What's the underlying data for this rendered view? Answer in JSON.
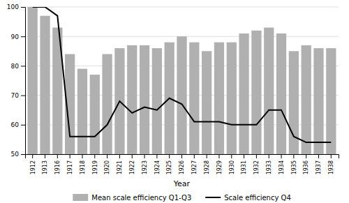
{
  "chart_data": {
    "type": "bar",
    "xlabel": "Year",
    "categories": [
      "1912",
      "1913",
      "1916",
      "1917",
      "1918",
      "1919",
      "1920",
      "1921",
      "1922",
      "1923",
      "1924",
      "1925",
      "1926",
      "1927",
      "1928",
      "1929",
      "1930",
      "1931",
      "1932",
      "1933",
      "1934",
      "1935",
      "1936",
      "1937",
      "1938"
    ],
    "series": [
      {
        "name": "Mean scale efficiency Q1-Q3",
        "type": "bar",
        "color": "#b0b0b0",
        "values": [
          100,
          97,
          93,
          84,
          79,
          77,
          84,
          86,
          87,
          87,
          86,
          88,
          90,
          88,
          85,
          88,
          88,
          91,
          92,
          93,
          91,
          85,
          87,
          86,
          86
        ]
      },
      {
        "name": "Scale efficiency Q4",
        "type": "line",
        "color": "#000000",
        "values": [
          100,
          100,
          97,
          56,
          56,
          56,
          60,
          68,
          64,
          66,
          65,
          69,
          67,
          61,
          61,
          61,
          60,
          60,
          60,
          65,
          65,
          56,
          54,
          54,
          54
        ]
      }
    ],
    "ylim": [
      50,
      100
    ],
    "yticks": [
      50,
      60,
      70,
      80,
      90,
      100
    ],
    "grid": true,
    "legend": "bottom"
  }
}
